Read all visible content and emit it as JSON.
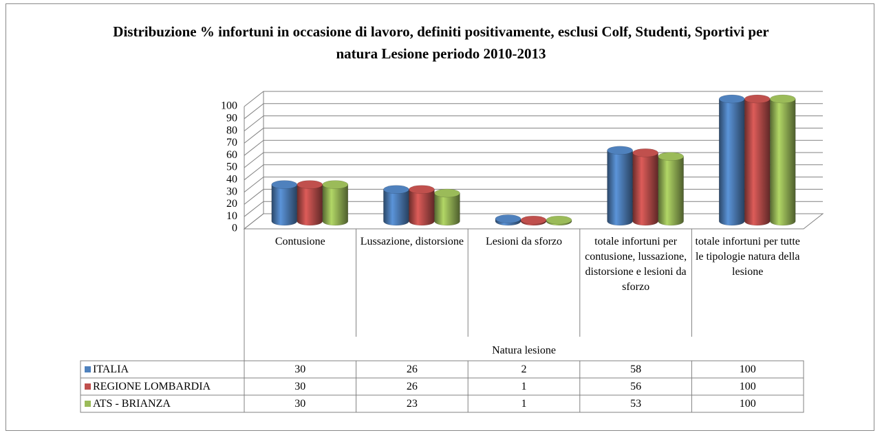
{
  "chart_data": {
    "type": "bar",
    "title": "Distribuzione % infortuni in occasione di lavoro, definiti positivamente, esclusi Colf, Studenti, Sportivi per natura Lesione periodo 2010-2013",
    "categories": [
      "Contusione",
      "Lussazione, distorsione",
      "Lesioni da sforzo",
      "totale infortuni per contusione, lussazione, distorsione e lesioni da sforzo",
      "totale infortuni per tutte le tipologie natura della lesione"
    ],
    "x_label": "Natura lesione",
    "series": [
      {
        "name": "ITALIA",
        "color": "#4f81bd",
        "values": [
          30,
          26,
          2,
          58,
          100
        ]
      },
      {
        "name": "REGIONE LOMBARDIA",
        "color": "#c0504d",
        "values": [
          30,
          26,
          1,
          56,
          100
        ]
      },
      {
        "name": "ATS - BRIANZA",
        "color": "#9bbb59",
        "values": [
          30,
          23,
          1,
          53,
          100
        ]
      }
    ],
    "ylim": [
      0,
      100
    ],
    "yticks": [
      0,
      10,
      20,
      30,
      40,
      50,
      60,
      70,
      80,
      90,
      100
    ],
    "grid": true,
    "data_table": true
  }
}
